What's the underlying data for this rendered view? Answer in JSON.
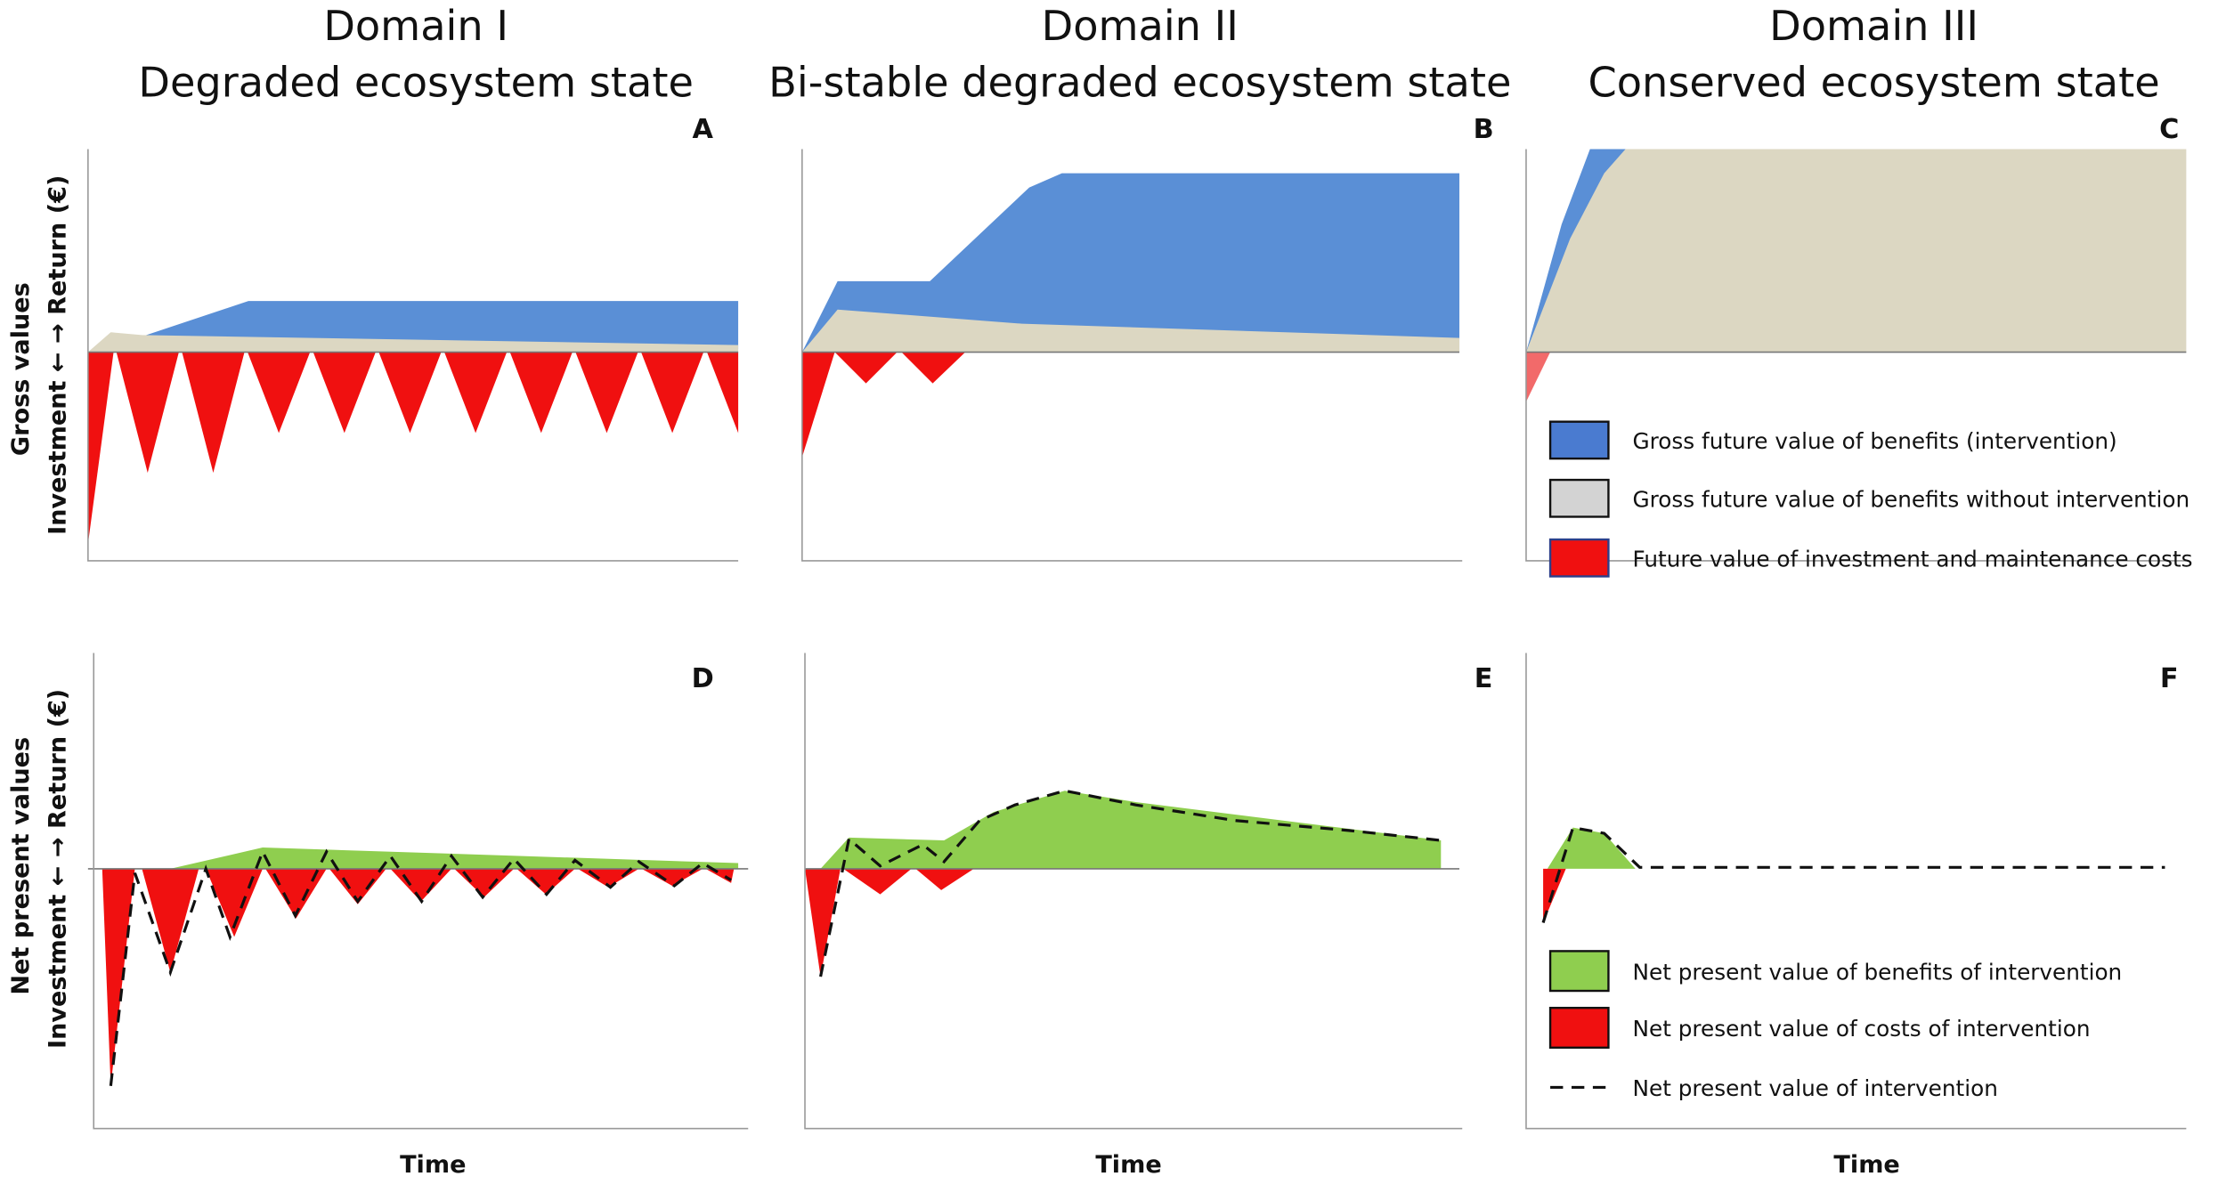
{
  "columns": [
    {
      "title": "Domain I",
      "subtitle": "Degraded ecosystem state"
    },
    {
      "title": "Domain II",
      "subtitle": "Bi-stable degraded ecosystem state"
    },
    {
      "title": "Domain III",
      "subtitle": "Conserved ecosystem state"
    }
  ],
  "panels": [
    "A",
    "B",
    "C",
    "D",
    "E",
    "F"
  ],
  "rows": [
    {
      "title": "Gross values",
      "axis": "Investment ← → Return (€)"
    },
    {
      "title": "Net present values",
      "axis": "Investment ← → Return (€)"
    }
  ],
  "legend_top": [
    "Gross future value of benefits (intervention)",
    "Gross future value of benefits without intervention",
    "Future value of investment and maintenance costs"
  ],
  "legend_bottom": [
    "Net present value of benefits of intervention",
    "Net present value of costs of intervention",
    "Net present value of intervention"
  ],
  "x_labels": [
    "Time",
    "Time",
    "Time"
  ]
}
